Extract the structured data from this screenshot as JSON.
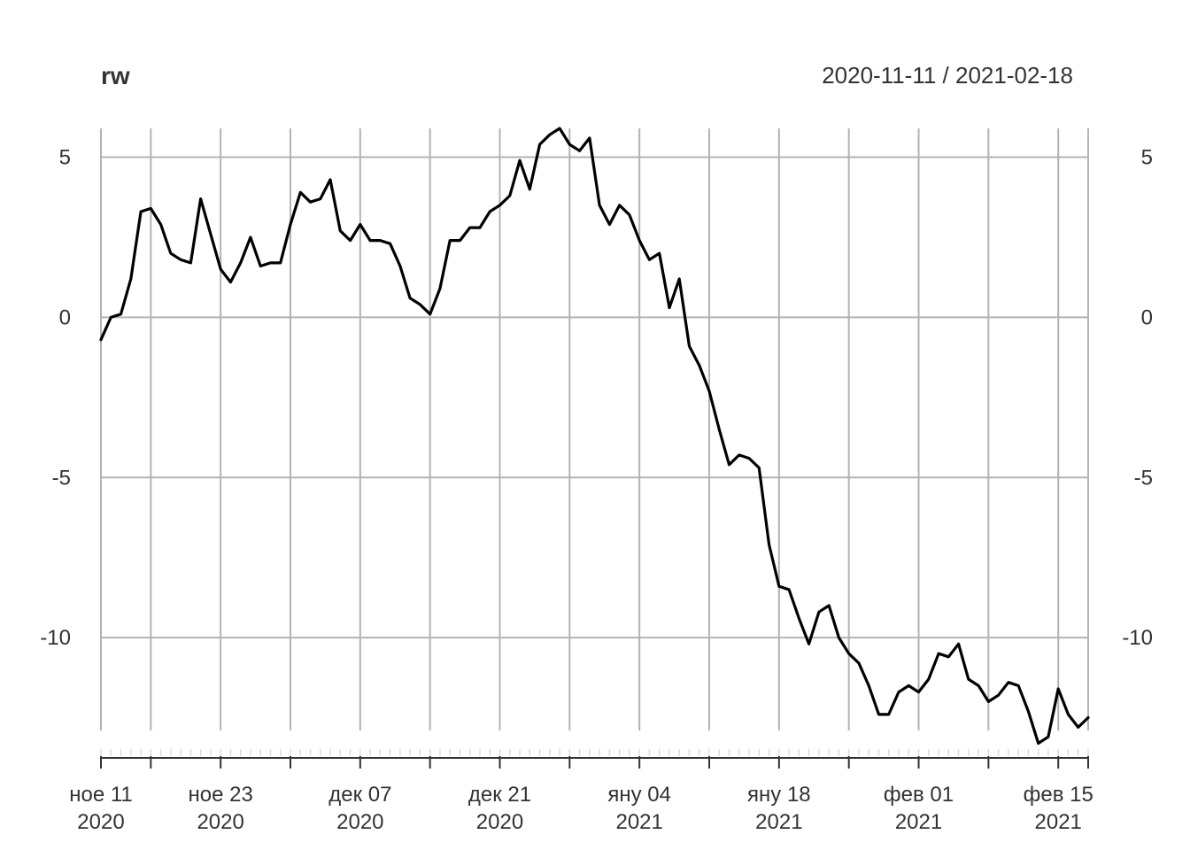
{
  "chart_data": {
    "type": "line",
    "title": "rw",
    "date_range_label": "2020-11-11 / 2021-02-18",
    "xlabel": "",
    "ylabel": "",
    "xlim": [
      "2020-11-11",
      "2021-02-18"
    ],
    "ylim": [
      -12.9,
      5.9
    ],
    "grid": true,
    "y_ticks": [
      {
        "value": 5,
        "label": "5"
      },
      {
        "value": 0,
        "label": "0"
      },
      {
        "value": -5,
        "label": "-5"
      },
      {
        "value": -10,
        "label": "-10"
      }
    ],
    "x_ticks": [
      {
        "date": "2020-11-11",
        "line1": "ное 11",
        "line2": "2020"
      },
      {
        "date": "2020-11-23",
        "line1": "ное 23",
        "line2": "2020"
      },
      {
        "date": "2020-12-07",
        "line1": "дек 07",
        "line2": "2020"
      },
      {
        "date": "2020-12-21",
        "line1": "дек 21",
        "line2": "2020"
      },
      {
        "date": "2021-01-04",
        "line1": "яну 04",
        "line2": "2021"
      },
      {
        "date": "2021-01-18",
        "line1": "яну 18",
        "line2": "2021"
      },
      {
        "date": "2021-02-01",
        "line1": "фев 01",
        "line2": "2021"
      },
      {
        "date": "2021-02-15",
        "line1": "фев 15",
        "line2": "2021"
      }
    ],
    "major_grid_dates": [
      "2020-11-11",
      "2020-11-16",
      "2020-11-23",
      "2020-11-30",
      "2020-12-07",
      "2020-12-14",
      "2020-12-21",
      "2020-12-28",
      "2021-01-04",
      "2021-01-11",
      "2021-01-18",
      "2021-01-25",
      "2021-02-01",
      "2021-02-08",
      "2021-02-15",
      "2021-02-18"
    ],
    "series": [
      {
        "color": "#000000",
        "x": [
          "2020-11-11",
          "2020-11-12",
          "2020-11-13",
          "2020-11-14",
          "2020-11-15",
          "2020-11-16",
          "2020-11-17",
          "2020-11-18",
          "2020-11-19",
          "2020-11-20",
          "2020-11-21",
          "2020-11-22",
          "2020-11-23",
          "2020-11-24",
          "2020-11-25",
          "2020-11-26",
          "2020-11-27",
          "2020-11-28",
          "2020-11-29",
          "2020-11-30",
          "2020-12-01",
          "2020-12-02",
          "2020-12-03",
          "2020-12-04",
          "2020-12-05",
          "2020-12-06",
          "2020-12-07",
          "2020-12-08",
          "2020-12-09",
          "2020-12-10",
          "2020-12-11",
          "2020-12-12",
          "2020-12-13",
          "2020-12-14",
          "2020-12-15",
          "2020-12-16",
          "2020-12-17",
          "2020-12-18",
          "2020-12-19",
          "2020-12-20",
          "2020-12-21",
          "2020-12-22",
          "2020-12-23",
          "2020-12-24",
          "2020-12-25",
          "2020-12-26",
          "2020-12-27",
          "2020-12-28",
          "2020-12-29",
          "2020-12-30",
          "2020-12-31",
          "2021-01-01",
          "2021-01-02",
          "2021-01-03",
          "2021-01-04",
          "2021-01-05",
          "2021-01-06",
          "2021-01-07",
          "2021-01-08",
          "2021-01-09",
          "2021-01-10",
          "2021-01-11",
          "2021-01-12",
          "2021-01-13",
          "2021-01-14",
          "2021-01-15",
          "2021-01-16",
          "2021-01-17",
          "2021-01-18",
          "2021-01-19",
          "2021-01-20",
          "2021-01-21",
          "2021-01-22",
          "2021-01-23",
          "2021-01-24",
          "2021-01-25",
          "2021-01-26",
          "2021-01-27",
          "2021-01-28",
          "2021-01-29",
          "2021-01-30",
          "2021-01-31",
          "2021-02-01",
          "2021-02-02",
          "2021-02-03",
          "2021-02-04",
          "2021-02-05",
          "2021-02-06",
          "2021-02-07",
          "2021-02-08",
          "2021-02-09",
          "2021-02-10",
          "2021-02-11",
          "2021-02-12",
          "2021-02-13",
          "2021-02-14",
          "2021-02-15",
          "2021-02-16",
          "2021-02-17",
          "2021-02-18"
        ],
        "values": [
          -0.7,
          0.0,
          0.1,
          1.2,
          3.3,
          3.4,
          2.9,
          2.0,
          1.8,
          1.7,
          3.7,
          2.6,
          1.5,
          1.1,
          1.7,
          2.5,
          1.6,
          1.7,
          1.7,
          2.9,
          3.9,
          3.6,
          3.7,
          4.3,
          2.7,
          2.4,
          2.9,
          2.4,
          2.4,
          2.3,
          1.6,
          0.6,
          0.4,
          0.1,
          0.9,
          2.4,
          2.4,
          2.8,
          2.8,
          3.3,
          3.5,
          3.8,
          4.9,
          4.0,
          5.4,
          5.7,
          5.9,
          5.4,
          5.2,
          5.6,
          3.5,
          2.9,
          3.5,
          3.2,
          2.4,
          1.8,
          2.0,
          0.3,
          1.2,
          -0.9,
          -1.5,
          -2.3,
          -3.5,
          -4.6,
          -4.3,
          -4.4,
          -4.7,
          -7.1,
          -8.4,
          -8.5,
          -9.4,
          -10.2,
          -9.2,
          -9.0,
          -10.0,
          -10.5,
          -10.8,
          -11.5,
          -12.4,
          -12.4,
          -11.7,
          -11.5,
          -11.7,
          -11.3,
          -10.5,
          -10.6,
          -10.2,
          -11.3,
          -11.5,
          -12.0,
          -11.8,
          -11.4,
          -11.5,
          -12.3,
          -13.3,
          -13.1,
          -11.6,
          -12.4,
          -12.8,
          -12.5
        ]
      }
    ]
  }
}
